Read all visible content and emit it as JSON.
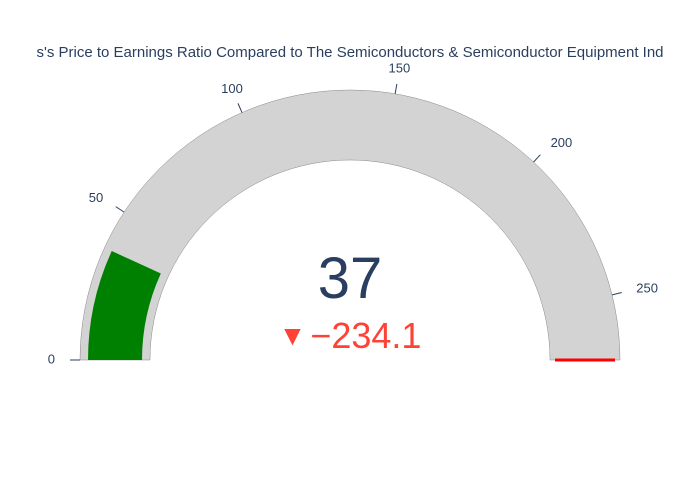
{
  "title": "s's Price to Earnings Ratio Compared to The Semiconductors & Semiconductor Equipment Ind",
  "gauge": {
    "type": "gauge",
    "value": 37,
    "delta_value": "−234.1",
    "min": 0,
    "max": 271,
    "ticks": [
      {
        "value": 0,
        "label": "0"
      },
      {
        "value": 50,
        "label": "50"
      },
      {
        "value": 100,
        "label": "100"
      },
      {
        "value": 150,
        "label": "150"
      },
      {
        "value": 200,
        "label": "200"
      },
      {
        "value": 250,
        "label": "250"
      }
    ],
    "background_color": "#d3d3d3",
    "bar_color": "#008000",
    "needle_color": "#ff0000",
    "needle_value": 271,
    "value_color": "#2a3f5f",
    "title_color": "#2a3f5f",
    "delta_color": "#ff4136",
    "tick_color": "#2a3f5f",
    "outer_radius": 270,
    "inner_radius": 200,
    "title_fontsize": 15,
    "value_fontsize": 58,
    "delta_fontsize": 36,
    "tick_fontsize": 13
  }
}
